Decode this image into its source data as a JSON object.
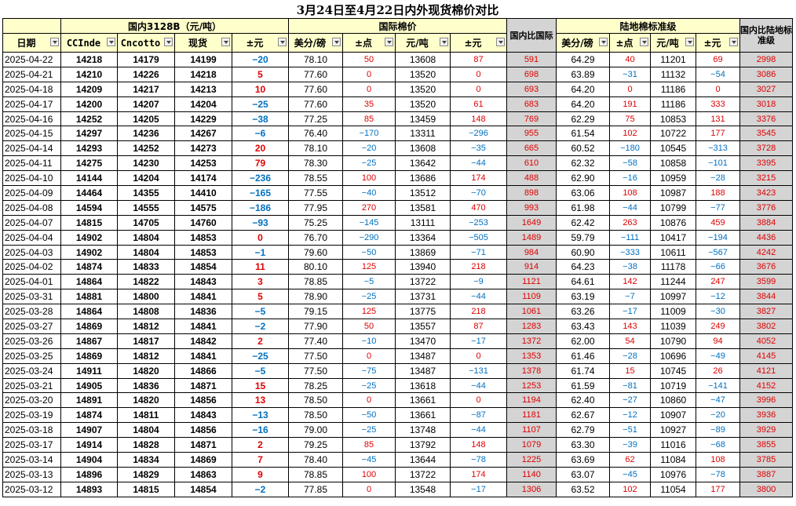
{
  "title": "3月24日至4月22日内外现货棉价对比",
  "groups": {
    "domestic": "国内3128B（元/吨）",
    "international": "国际棉价",
    "landed": "陆地棉标准级"
  },
  "headers": {
    "date": "日期",
    "ccindex": "CCInde",
    "cncotton": "Cncotto",
    "spot": "现货",
    "chg_dom": "±元",
    "usd_lb": "美分/磅",
    "pts": "±点",
    "cny_t": "元/吨",
    "chg_intl": "±元",
    "diff_intl": "国内比国际",
    "land_usd": "美分/磅",
    "land_pts": "±点",
    "land_cny": "元/吨",
    "land_chg": "±元",
    "diff_land": "国内比陆地标准级"
  },
  "colors": {
    "up": "#e00000",
    "down": "#0070c0",
    "header_bg": "#ffffcc",
    "gray_bg": "#d4d4d4"
  },
  "rows": [
    {
      "date": "2025-04-22",
      "cci": "14218",
      "cnc": "14179",
      "spot": "14199",
      "chg": "−20",
      "usd": "78.10",
      "pts": "50",
      "cny": "13608",
      "ichg": "87",
      "diff": "591",
      "lusd": "64.29",
      "lpts": "40",
      "lcny": "11201",
      "lchg": "69",
      "ldiff": "2998"
    },
    {
      "date": "2025-04-21",
      "cci": "14210",
      "cnc": "14226",
      "spot": "14218",
      "chg": "5",
      "usd": "77.60",
      "pts": "0",
      "cny": "13520",
      "ichg": "0",
      "diff": "698",
      "lusd": "63.89",
      "lpts": "−31",
      "lcny": "11132",
      "lchg": "−54",
      "ldiff": "3086"
    },
    {
      "date": "2025-04-18",
      "cci": "14209",
      "cnc": "14217",
      "spot": "14213",
      "chg": "10",
      "usd": "77.60",
      "pts": "0",
      "cny": "13520",
      "ichg": "0",
      "diff": "693",
      "lusd": "64.20",
      "lpts": "0",
      "lcny": "11186",
      "lchg": "0",
      "ldiff": "3027"
    },
    {
      "date": "2025-04-17",
      "cci": "14200",
      "cnc": "14207",
      "spot": "14204",
      "chg": "−25",
      "usd": "77.60",
      "pts": "35",
      "cny": "13520",
      "ichg": "61",
      "diff": "683",
      "lusd": "64.20",
      "lpts": "191",
      "lcny": "11186",
      "lchg": "333",
      "ldiff": "3018"
    },
    {
      "date": "2025-04-16",
      "cci": "14252",
      "cnc": "14205",
      "spot": "14229",
      "chg": "−38",
      "usd": "77.25",
      "pts": "85",
      "cny": "13459",
      "ichg": "148",
      "diff": "769",
      "lusd": "62.29",
      "lpts": "75",
      "lcny": "10853",
      "lchg": "131",
      "ldiff": "3376"
    },
    {
      "date": "2025-04-15",
      "cci": "14297",
      "cnc": "14236",
      "spot": "14267",
      "chg": "−6",
      "usd": "76.40",
      "pts": "−170",
      "cny": "13311",
      "ichg": "−296",
      "diff": "955",
      "lusd": "61.54",
      "lpts": "102",
      "lcny": "10722",
      "lchg": "177",
      "ldiff": "3545"
    },
    {
      "date": "2025-04-14",
      "cci": "14293",
      "cnc": "14252",
      "spot": "14273",
      "chg": "20",
      "usd": "78.10",
      "pts": "−20",
      "cny": "13608",
      "ichg": "−35",
      "diff": "665",
      "lusd": "60.52",
      "lpts": "−180",
      "lcny": "10545",
      "lchg": "−313",
      "ldiff": "3728"
    },
    {
      "date": "2025-04-11",
      "cci": "14275",
      "cnc": "14230",
      "spot": "14253",
      "chg": "79",
      "usd": "78.30",
      "pts": "−25",
      "cny": "13642",
      "ichg": "−44",
      "diff": "610",
      "lusd": "62.32",
      "lpts": "−58",
      "lcny": "10858",
      "lchg": "−101",
      "ldiff": "3395"
    },
    {
      "date": "2025-04-10",
      "cci": "14144",
      "cnc": "14204",
      "spot": "14174",
      "chg": "−236",
      "usd": "78.55",
      "pts": "100",
      "cny": "13686",
      "ichg": "174",
      "diff": "488",
      "lusd": "62.90",
      "lpts": "−16",
      "lcny": "10959",
      "lchg": "−28",
      "ldiff": "3215"
    },
    {
      "date": "2025-04-09",
      "cci": "14464",
      "cnc": "14355",
      "spot": "14410",
      "chg": "−165",
      "usd": "77.55",
      "pts": "−40",
      "cny": "13512",
      "ichg": "−70",
      "diff": "898",
      "lusd": "63.06",
      "lpts": "108",
      "lcny": "10987",
      "lchg": "188",
      "ldiff": "3423"
    },
    {
      "date": "2025-04-08",
      "cci": "14594",
      "cnc": "14555",
      "spot": "14575",
      "chg": "−186",
      "usd": "77.95",
      "pts": "270",
      "cny": "13581",
      "ichg": "470",
      "diff": "993",
      "lusd": "61.98",
      "lpts": "−44",
      "lcny": "10799",
      "lchg": "−77",
      "ldiff": "3776"
    },
    {
      "date": "2025-04-07",
      "cci": "14815",
      "cnc": "14705",
      "spot": "14760",
      "chg": "−93",
      "usd": "75.25",
      "pts": "−145",
      "cny": "13111",
      "ichg": "−253",
      "diff": "1649",
      "lusd": "62.42",
      "lpts": "263",
      "lcny": "10876",
      "lchg": "459",
      "ldiff": "3884"
    },
    {
      "date": "2025-04-04",
      "cci": "14902",
      "cnc": "14804",
      "spot": "14853",
      "chg": "0",
      "usd": "76.70",
      "pts": "−290",
      "cny": "13364",
      "ichg": "−505",
      "diff": "1489",
      "lusd": "59.79",
      "lpts": "−111",
      "lcny": "10417",
      "lchg": "−194",
      "ldiff": "4436"
    },
    {
      "date": "2025-04-03",
      "cci": "14902",
      "cnc": "14804",
      "spot": "14853",
      "chg": "−1",
      "usd": "79.60",
      "pts": "−50",
      "cny": "13869",
      "ichg": "−71",
      "diff": "984",
      "lusd": "60.90",
      "lpts": "−333",
      "lcny": "10611",
      "lchg": "−567",
      "ldiff": "4242"
    },
    {
      "date": "2025-04-02",
      "cci": "14874",
      "cnc": "14833",
      "spot": "14854",
      "chg": "11",
      "usd": "80.10",
      "pts": "125",
      "cny": "13940",
      "ichg": "218",
      "diff": "914",
      "lusd": "64.23",
      "lpts": "−38",
      "lcny": "11178",
      "lchg": "−66",
      "ldiff": "3676"
    },
    {
      "date": "2025-04-01",
      "cci": "14864",
      "cnc": "14822",
      "spot": "14843",
      "chg": "3",
      "usd": "78.85",
      "pts": "−5",
      "cny": "13722",
      "ichg": "−9",
      "diff": "1121",
      "lusd": "64.61",
      "lpts": "142",
      "lcny": "11244",
      "lchg": "247",
      "ldiff": "3599"
    },
    {
      "date": "2025-03-31",
      "cci": "14881",
      "cnc": "14800",
      "spot": "14841",
      "chg": "5",
      "usd": "78.90",
      "pts": "−25",
      "cny": "13731",
      "ichg": "−44",
      "diff": "1109",
      "lusd": "63.19",
      "lpts": "−7",
      "lcny": "10997",
      "lchg": "−12",
      "ldiff": "3844"
    },
    {
      "date": "2025-03-28",
      "cci": "14864",
      "cnc": "14808",
      "spot": "14836",
      "chg": "−5",
      "usd": "79.15",
      "pts": "125",
      "cny": "13775",
      "ichg": "218",
      "diff": "1061",
      "lusd": "63.26",
      "lpts": "−17",
      "lcny": "11009",
      "lchg": "−30",
      "ldiff": "3827"
    },
    {
      "date": "2025-03-27",
      "cci": "14869",
      "cnc": "14812",
      "spot": "14841",
      "chg": "−2",
      "usd": "77.90",
      "pts": "50",
      "cny": "13557",
      "ichg": "87",
      "diff": "1283",
      "lusd": "63.43",
      "lpts": "143",
      "lcny": "11039",
      "lchg": "249",
      "ldiff": "3802"
    },
    {
      "date": "2025-03-26",
      "cci": "14867",
      "cnc": "14817",
      "spot": "14842",
      "chg": "2",
      "usd": "77.40",
      "pts": "−10",
      "cny": "13470",
      "ichg": "−17",
      "diff": "1372",
      "lusd": "62.00",
      "lpts": "54",
      "lcny": "10790",
      "lchg": "94",
      "ldiff": "4052"
    },
    {
      "date": "2025-03-25",
      "cci": "14869",
      "cnc": "14812",
      "spot": "14841",
      "chg": "−25",
      "usd": "77.50",
      "pts": "0",
      "cny": "13487",
      "ichg": "0",
      "diff": "1353",
      "lusd": "61.46",
      "lpts": "−28",
      "lcny": "10696",
      "lchg": "−49",
      "ldiff": "4145"
    },
    {
      "date": "2025-03-24",
      "cci": "14911",
      "cnc": "14820",
      "spot": "14866",
      "chg": "−5",
      "usd": "77.50",
      "pts": "−75",
      "cny": "13487",
      "ichg": "−131",
      "diff": "1378",
      "lusd": "61.74",
      "lpts": "15",
      "lcny": "10745",
      "lchg": "26",
      "ldiff": "4121"
    },
    {
      "date": "2025-03-21",
      "cci": "14905",
      "cnc": "14836",
      "spot": "14871",
      "chg": "15",
      "usd": "78.25",
      "pts": "−25",
      "cny": "13618",
      "ichg": "−44",
      "diff": "1253",
      "lusd": "61.59",
      "lpts": "−81",
      "lcny": "10719",
      "lchg": "−141",
      "ldiff": "4152"
    },
    {
      "date": "2025-03-20",
      "cci": "14891",
      "cnc": "14820",
      "spot": "14856",
      "chg": "13",
      "usd": "78.50",
      "pts": "0",
      "cny": "13661",
      "ichg": "0",
      "diff": "1194",
      "lusd": "62.40",
      "lpts": "−27",
      "lcny": "10860",
      "lchg": "−47",
      "ldiff": "3996"
    },
    {
      "date": "2025-03-19",
      "cci": "14874",
      "cnc": "14811",
      "spot": "14843",
      "chg": "−13",
      "usd": "78.50",
      "pts": "−50",
      "cny": "13661",
      "ichg": "−87",
      "diff": "1181",
      "lusd": "62.67",
      "lpts": "−12",
      "lcny": "10907",
      "lchg": "−20",
      "ldiff": "3936"
    },
    {
      "date": "2025-03-18",
      "cci": "14907",
      "cnc": "14804",
      "spot": "14856",
      "chg": "−16",
      "usd": "79.00",
      "pts": "−25",
      "cny": "13748",
      "ichg": "−44",
      "diff": "1107",
      "lusd": "62.79",
      "lpts": "−51",
      "lcny": "10927",
      "lchg": "−89",
      "ldiff": "3929"
    },
    {
      "date": "2025-03-17",
      "cci": "14914",
      "cnc": "14828",
      "spot": "14871",
      "chg": "2",
      "usd": "79.25",
      "pts": "85",
      "cny": "13792",
      "ichg": "148",
      "diff": "1079",
      "lusd": "63.30",
      "lpts": "−39",
      "lcny": "11016",
      "lchg": "−68",
      "ldiff": "3855"
    },
    {
      "date": "2025-03-14",
      "cci": "14904",
      "cnc": "14834",
      "spot": "14869",
      "chg": "7",
      "usd": "78.40",
      "pts": "−45",
      "cny": "13644",
      "ichg": "−78",
      "diff": "1225",
      "lusd": "63.69",
      "lpts": "62",
      "lcny": "11084",
      "lchg": "108",
      "ldiff": "3785"
    },
    {
      "date": "2025-03-13",
      "cci": "14896",
      "cnc": "14829",
      "spot": "14863",
      "chg": "9",
      "usd": "78.85",
      "pts": "100",
      "cny": "13722",
      "ichg": "174",
      "diff": "1140",
      "lusd": "63.07",
      "lpts": "−45",
      "lcny": "10976",
      "lchg": "−78",
      "ldiff": "3887"
    },
    {
      "date": "2025-03-12",
      "cci": "14893",
      "cnc": "14815",
      "spot": "14854",
      "chg": "−2",
      "usd": "77.85",
      "pts": "0",
      "cny": "13548",
      "ichg": "−17",
      "diff": "1306",
      "lusd": "63.52",
      "lpts": "102",
      "lcny": "11054",
      "lchg": "177",
      "ldiff": "3800"
    }
  ]
}
